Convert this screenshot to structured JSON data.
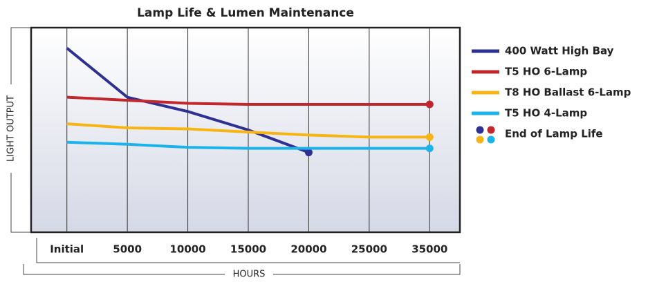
{
  "chart_data": {
    "type": "line",
    "title": "Lamp Life & Lumen Maintenance",
    "x_label": "HOURS",
    "y_label": "LIGHT OUTPUT",
    "categories": [
      "Initial",
      "5000",
      "10000",
      "15000",
      "20000",
      "25000",
      "35000"
    ],
    "ylim": [
      0,
      100
    ],
    "series": [
      {
        "name": "400 Watt High Bay",
        "color": "#2e3192",
        "values": [
          90,
          66,
          59,
          50,
          39,
          null,
          null
        ]
      },
      {
        "name": "T5 HO 6-Lamp",
        "color": "#c1272d",
        "values": [
          66,
          64.5,
          63,
          62.5,
          62.5,
          62.5,
          62.5
        ]
      },
      {
        "name": "T8 HO Ballast 6-Lamp",
        "color": "#f7b515",
        "values": [
          53,
          51,
          50.5,
          49,
          47.5,
          46.5,
          46.5
        ]
      },
      {
        "name": "T5 HO 4-Lamp",
        "color": "#1bb3ea",
        "values": [
          44,
          43,
          41.5,
          41,
          41,
          41,
          41
        ]
      }
    ],
    "end_marker_label": "End of Lamp Life"
  }
}
